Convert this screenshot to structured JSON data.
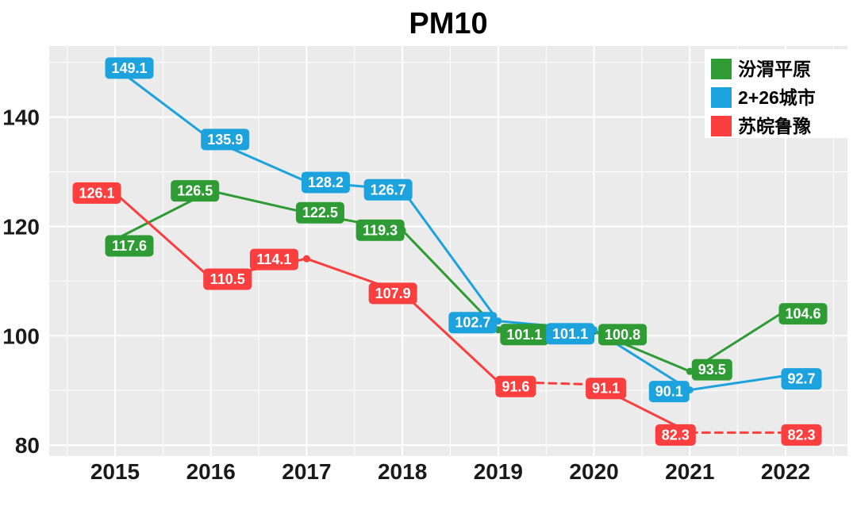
{
  "title": "PM10",
  "chart_data": {
    "type": "line",
    "title": "PM10",
    "x": [
      "2015",
      "2016",
      "2017",
      "2018",
      "2019",
      "2020",
      "2021",
      "2022"
    ],
    "series": [
      {
        "name": "汾渭平原",
        "slug": "fenwei-plain",
        "color": "#2E9B34",
        "values": [
          117.6,
          126.5,
          122.5,
          119.3,
          101.1,
          100.8,
          93.5,
          104.6
        ],
        "dashed_segments": [],
        "label_offsets": [
          [
            18,
            8
          ],
          [
            -20,
            0
          ],
          [
            17,
            0
          ],
          [
            -28,
            0
          ],
          [
            33,
            6
          ],
          [
            36,
            4
          ],
          [
            28,
            -2
          ],
          [
            22,
            4
          ]
        ]
      },
      {
        "name": "2+26城市",
        "slug": "2plus26-cities",
        "color": "#1CA2DC",
        "values": [
          149.1,
          135.9,
          128.2,
          126.7,
          102.7,
          101.1,
          90.1,
          92.7
        ],
        "dashed_segments": [],
        "label_offsets": [
          [
            18,
            1
          ],
          [
            18,
            0
          ],
          [
            24,
            1
          ],
          [
            -18,
            0
          ],
          [
            -32,
            2
          ],
          [
            -30,
            5
          ],
          [
            -26,
            2
          ],
          [
            20,
            4
          ]
        ]
      },
      {
        "name": "苏皖鲁豫",
        "slug": "su-wan-lu-yu",
        "color": "#FB3E3E",
        "values": [
          126.1,
          110.5,
          114.1,
          107.9,
          91.6,
          91.1,
          82.3,
          82.3
        ],
        "dashed_segments": [
          4,
          6
        ],
        "label_offsets": [
          [
            -23,
            0
          ],
          [
            21,
            1
          ],
          [
            -41,
            1
          ],
          [
            -12,
            1
          ],
          [
            22,
            6
          ],
          [
            15,
            5
          ],
          [
            -18,
            3
          ],
          [
            20,
            3
          ]
        ]
      }
    ],
    "xlabel": "",
    "ylabel": "",
    "ylim": [
      78,
      153
    ],
    "yticks": [
      80,
      100,
      120,
      140
    ],
    "y_minor_ticks": [
      90,
      110,
      130,
      150
    ],
    "grid": true,
    "panel_background": "#EBEBEB",
    "grid_color": "#FFFFFF",
    "data_label_text_color": "#FFFFFF",
    "axis_text_color": "#1A1A1A",
    "legend": {
      "position": "top-right",
      "background": "#FFFFFF",
      "text_color": "#000000",
      "items": [
        "汾渭平原",
        "2+26城市",
        "苏皖鲁豫"
      ]
    }
  }
}
